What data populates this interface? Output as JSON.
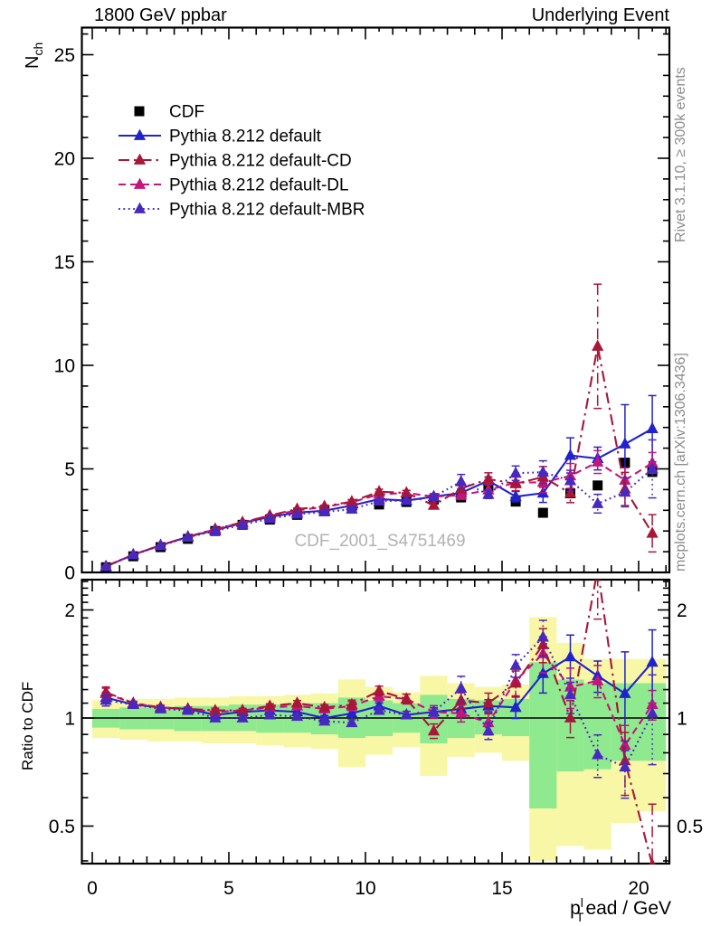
{
  "header": {
    "title_left": "1800 GeV ppbar",
    "title_right": "Underlying Event"
  },
  "side_notes": {
    "right_top": "Rivet 3.1.10, ≥ 300k events",
    "right_bottom": "mcplots.cern.ch [arXiv:1306.3436]"
  },
  "watermark": "CDF_2001_S4751469",
  "axes": {
    "y_top": {
      "label_base": "N",
      "label_sub": "ch",
      "ticks": [
        0,
        5,
        10,
        15,
        20,
        25
      ]
    },
    "y_ratio": {
      "label": "Ratio to CDF",
      "ticks": [
        0.5,
        1,
        2
      ]
    },
    "x": {
      "label_p": "p",
      "label_sup": "l",
      "label_sub": "T",
      "label_rest": "ead / GeV",
      "ticks": [
        0,
        5,
        10,
        15,
        20
      ]
    }
  },
  "chart_data": {
    "type": "line",
    "title": "Underlying Event, 1800 GeV ppbar",
    "xlabel": "pT lead / GeV",
    "xlim": [
      -0.4,
      21.1
    ],
    "xticks": [
      0,
      5,
      10,
      15,
      20
    ],
    "bin_width": 1,
    "x": [
      0.5,
      1.5,
      2.5,
      3.5,
      4.5,
      5.5,
      6.5,
      7.5,
      8.5,
      9.5,
      10.5,
      11.5,
      12.5,
      13.5,
      14.5,
      15.5,
      16.5,
      17.5,
      18.5,
      19.5,
      20.5
    ],
    "top_panel": {
      "ylabel": "N_ch",
      "ylim": [
        0,
        26.3
      ],
      "yticks": [
        0,
        5,
        10,
        15,
        20,
        25
      ],
      "scale": "linear"
    },
    "ratio_panel": {
      "ylabel": "Ratio to CDF",
      "ylim": [
        0.4,
        2.43
      ],
      "yticks": [
        0.5,
        1,
        2
      ],
      "scale": "log"
    },
    "series": [
      {
        "name": "CDF",
        "kind": "data",
        "marker": "square",
        "color": "#000000",
        "line": "none",
        "values": [
          0.25,
          0.78,
          1.22,
          1.62,
          2.0,
          2.3,
          2.55,
          2.78,
          2.98,
          3.14,
          3.28,
          3.4,
          3.52,
          3.62,
          4.1,
          3.42,
          2.88,
          3.82,
          4.2,
          5.3,
          4.85
        ],
        "yerr": null,
        "ratio_to_cdf": null
      },
      {
        "name": "Pythia 8.212 default",
        "kind": "mc",
        "marker": "triangle",
        "color": "#2222cc",
        "line": "solid",
        "values": [
          0.29,
          0.85,
          1.31,
          1.72,
          2.04,
          2.39,
          2.68,
          2.89,
          2.98,
          3.23,
          3.54,
          3.47,
          3.66,
          3.84,
          4.43,
          3.66,
          3.83,
          5.65,
          5.5,
          6.2,
          6.94
        ],
        "yerr": [
          0.01,
          0.01,
          0.02,
          0.02,
          0.02,
          0.03,
          0.03,
          0.04,
          0.05,
          0.06,
          0.07,
          0.08,
          0.1,
          0.13,
          0.18,
          0.25,
          0.45,
          0.85,
          0.55,
          1.9,
          1.6
        ],
        "ratio_to_cdf": [
          1.14,
          1.09,
          1.07,
          1.06,
          1.02,
          1.04,
          1.05,
          1.04,
          1.0,
          1.03,
          1.08,
          1.02,
          1.04,
          1.06,
          1.08,
          1.07,
          1.33,
          1.48,
          1.31,
          1.17,
          1.43
        ]
      },
      {
        "name": "Pythia 8.212 default-CD",
        "kind": "mc",
        "marker": "triangle",
        "color": "#a81638",
        "line": "dashdot",
        "values": [
          0.3,
          0.86,
          1.31,
          1.72,
          2.1,
          2.42,
          2.75,
          3.06,
          3.19,
          3.42,
          3.9,
          3.84,
          3.24,
          4.05,
          4.51,
          4.28,
          4.61,
          3.82,
          10.92,
          4.03,
          1.89
        ],
        "yerr": [
          0.01,
          0.01,
          0.02,
          0.02,
          0.03,
          0.03,
          0.04,
          0.05,
          0.06,
          0.1,
          0.12,
          0.12,
          0.15,
          0.2,
          0.3,
          0.35,
          0.5,
          0.45,
          3.0,
          0.8,
          0.9
        ],
        "ratio_to_cdf": [
          1.18,
          1.1,
          1.07,
          1.06,
          1.05,
          1.05,
          1.08,
          1.1,
          1.07,
          1.09,
          1.19,
          1.13,
          0.92,
          1.12,
          1.1,
          1.25,
          1.6,
          1.0,
          2.6,
          0.76,
          0.39
        ]
      },
      {
        "name": "Pythia 8.212 default-DL",
        "kind": "mc",
        "marker": "triangle",
        "color": "#c3157b",
        "line": "dashed",
        "values": [
          0.29,
          0.86,
          1.31,
          1.72,
          2.08,
          2.42,
          2.73,
          3.0,
          3.16,
          3.39,
          3.77,
          3.84,
          3.66,
          3.73,
          3.98,
          4.34,
          4.35,
          4.66,
          5.33,
          4.45,
          5.29
        ],
        "yerr": [
          0.01,
          0.01,
          0.02,
          0.02,
          0.03,
          0.03,
          0.04,
          0.05,
          0.06,
          0.1,
          0.12,
          0.12,
          0.15,
          0.2,
          0.3,
          0.4,
          0.5,
          0.6,
          0.55,
          0.6,
          0.5
        ],
        "ratio_to_cdf": [
          1.17,
          1.1,
          1.07,
          1.06,
          1.04,
          1.05,
          1.07,
          1.08,
          1.06,
          1.08,
          1.15,
          1.13,
          1.04,
          1.03,
          0.97,
          1.27,
          1.51,
          1.22,
          1.27,
          0.84,
          1.09
        ]
      },
      {
        "name": "Pythia 8.212 default-MBR",
        "kind": "mc",
        "marker": "triangle",
        "color": "#4829c0",
        "line": "dotted",
        "values": [
          0.28,
          0.85,
          1.29,
          1.7,
          2.0,
          2.3,
          2.6,
          2.81,
          2.92,
          3.05,
          3.44,
          3.47,
          3.66,
          4.38,
          3.77,
          4.79,
          4.84,
          4.43,
          3.32,
          3.87,
          5.0
        ],
        "yerr": [
          0.01,
          0.01,
          0.02,
          0.02,
          0.02,
          0.03,
          0.03,
          0.04,
          0.05,
          0.06,
          0.07,
          0.08,
          0.1,
          0.35,
          0.2,
          0.35,
          0.55,
          0.5,
          0.45,
          0.7,
          1.4
        ],
        "ratio_to_cdf": [
          1.12,
          1.09,
          1.06,
          1.05,
          1.0,
          1.0,
          1.02,
          1.01,
          0.98,
          0.97,
          1.05,
          1.02,
          1.04,
          1.21,
          0.92,
          1.4,
          1.68,
          1.16,
          0.79,
          0.73,
          1.03
        ]
      }
    ],
    "uncertainty_bands": {
      "yellow": {
        "color": "#f7f7a6",
        "lo": [
          0.88,
          0.87,
          0.86,
          0.86,
          0.85,
          0.85,
          0.84,
          0.83,
          0.82,
          0.73,
          0.79,
          0.83,
          0.69,
          0.78,
          0.8,
          0.76,
          0.4,
          0.44,
          0.43,
          0.51,
          0.55
        ],
        "hi": [
          1.12,
          1.13,
          1.13,
          1.14,
          1.14,
          1.15,
          1.15,
          1.16,
          1.17,
          1.28,
          1.22,
          1.18,
          1.31,
          1.25,
          1.22,
          1.24,
          1.91,
          1.62,
          1.46,
          1.46,
          1.46
        ]
      },
      "green": {
        "color": "#8fe98f",
        "lo": [
          0.94,
          0.93,
          0.93,
          0.92,
          0.92,
          0.92,
          0.91,
          0.91,
          0.9,
          0.88,
          0.89,
          0.91,
          0.85,
          0.88,
          0.9,
          0.89,
          0.56,
          0.71,
          0.72,
          0.76,
          0.76
        ],
        "hi": [
          1.06,
          1.07,
          1.07,
          1.08,
          1.08,
          1.09,
          1.09,
          1.1,
          1.1,
          1.14,
          1.12,
          1.1,
          1.16,
          1.13,
          1.12,
          1.13,
          1.43,
          1.28,
          1.25,
          1.25,
          1.25
        ]
      }
    },
    "legend_position": "top-left",
    "grid": false
  }
}
